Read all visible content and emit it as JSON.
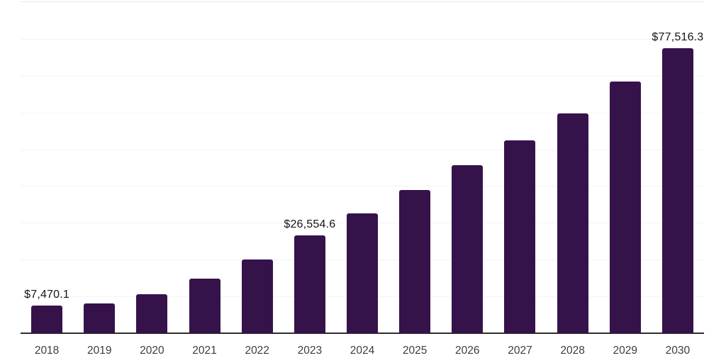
{
  "chart_data": {
    "type": "bar",
    "title": "",
    "xlabel": "",
    "ylabel": "",
    "categories": [
      "2018",
      "2019",
      "2020",
      "2021",
      "2022",
      "2023",
      "2024",
      "2025",
      "2026",
      "2027",
      "2028",
      "2029",
      "2030"
    ],
    "values": [
      7470.1,
      8150,
      10660,
      14830,
      20040,
      26554.6,
      32630,
      38870,
      45730,
      52470,
      59800,
      68350,
      77516.3
    ],
    "data_labels": [
      "$7,470.1",
      null,
      null,
      null,
      null,
      "$26,554.6",
      null,
      null,
      null,
      null,
      null,
      null,
      "$77,516.3"
    ],
    "ylim": [
      0,
      90000
    ],
    "gridline_step": 10000,
    "grid": true,
    "legend": false,
    "bar_color": "#36124b"
  },
  "colors": {
    "background": "#ffffff",
    "bar": "#36124b",
    "axis_line": "#2e2e2e",
    "gridline": "#f4f4f4",
    "plot_top_border": "#e7e7e7",
    "tick_label": "#3d3d3d",
    "data_label": "#151515"
  }
}
